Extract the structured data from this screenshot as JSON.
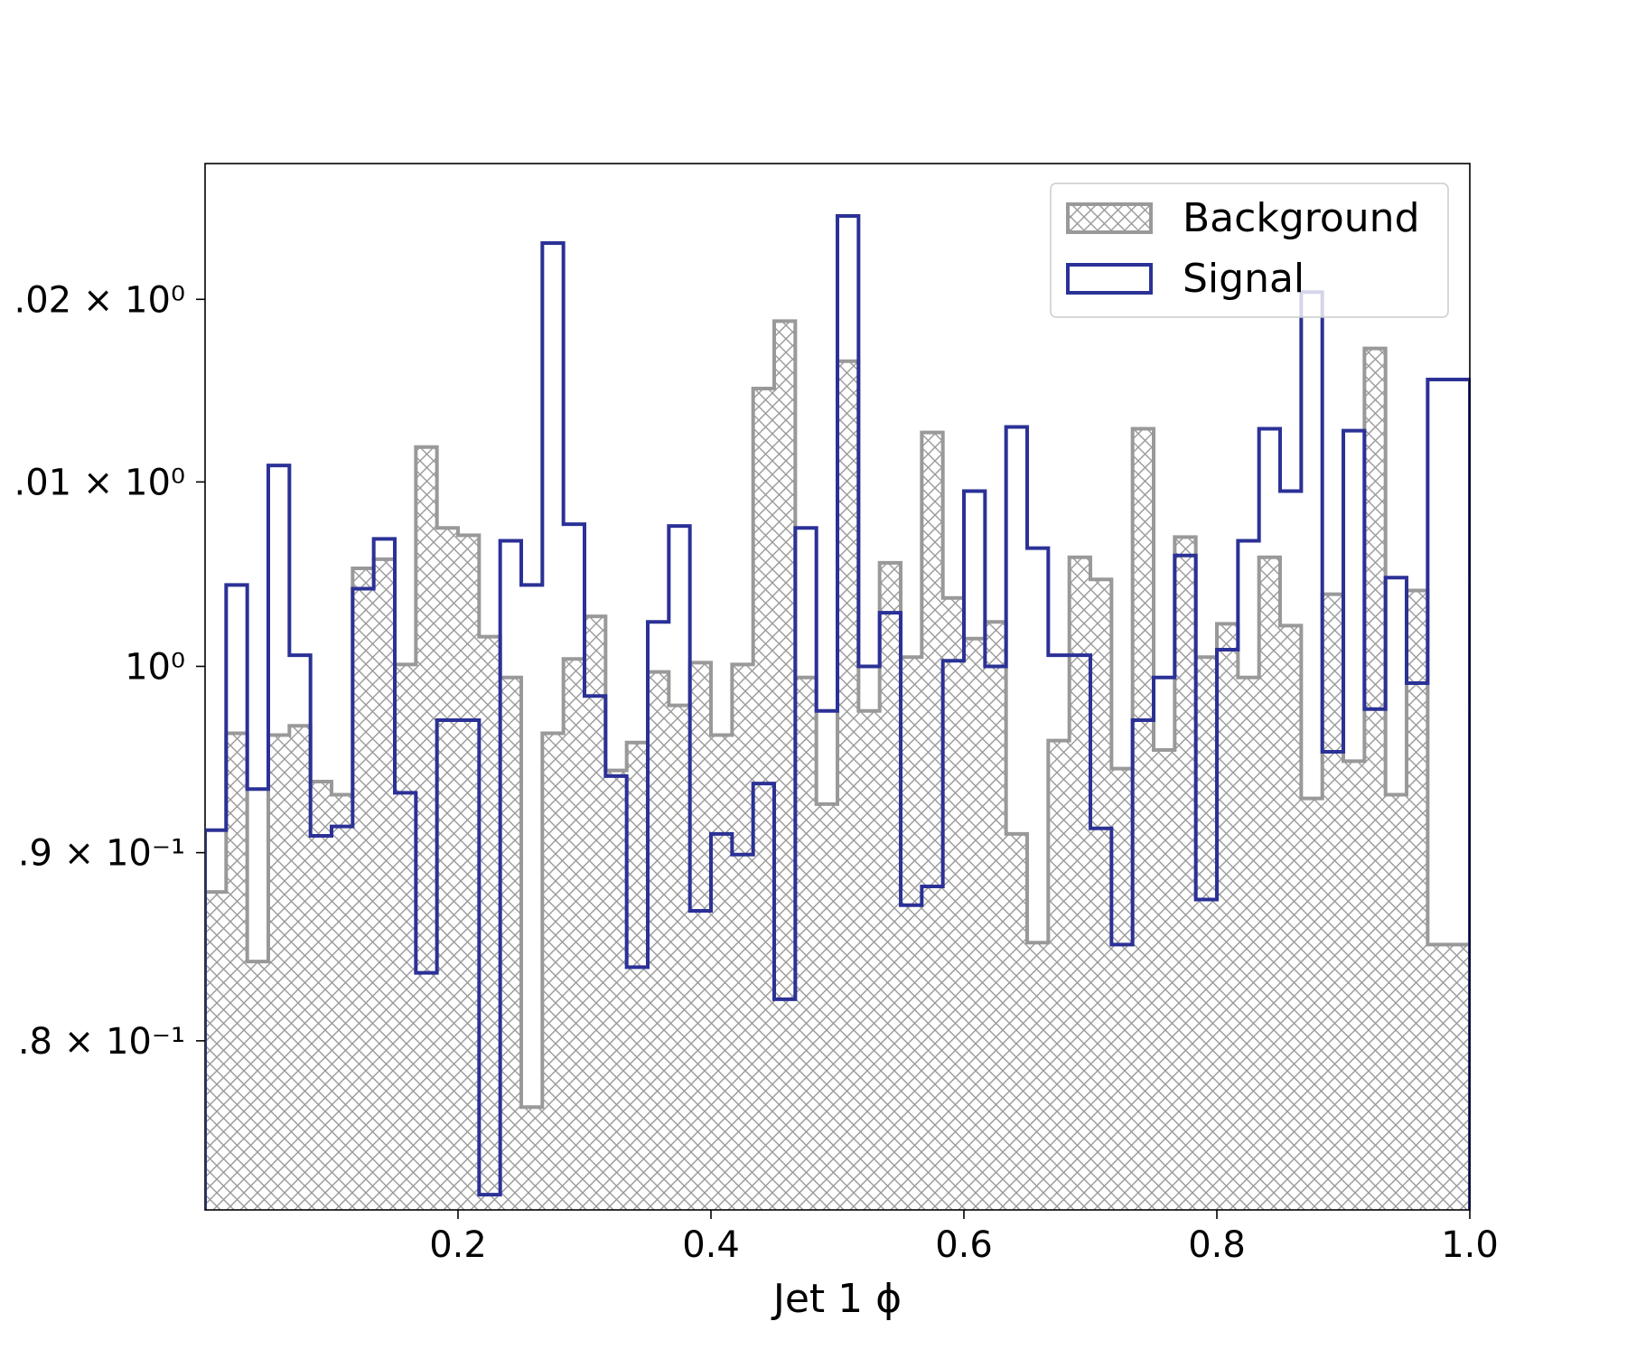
{
  "chart_data": {
    "type": "histogram",
    "xlabel": "Jet 1 ϕ",
    "ylabel": "",
    "xlim": [
      0.0,
      1.0
    ],
    "ylim": [
      0.9711,
      1.0275
    ],
    "yscale": "log",
    "x_ticks": [
      "0.2",
      "0.4",
      "0.6",
      "0.8",
      "1.0"
    ],
    "x_tick_values": [
      0.2,
      0.4,
      0.6,
      0.8,
      1.0
    ],
    "y_ticks": [
      {
        "value": 0.98,
        "label": ".8 × 10⁻¹"
      },
      {
        "value": 0.99,
        "label": ".9 × 10⁻¹"
      },
      {
        "value": 1.0,
        "label": "10⁰"
      },
      {
        "value": 1.01,
        "label": ".01 × 10⁰"
      },
      {
        "value": 1.02,
        "label": ".02 × 10⁰"
      }
    ],
    "bin_edges_start": 0.0,
    "bin_width": 0.016667,
    "grid": false,
    "legend_position": "top-right",
    "series": [
      {
        "name": "Background",
        "style": "hatched-filled",
        "color": "#999999",
        "values": [
          0.9879,
          0.9964,
          0.9842,
          0.9963,
          0.9968,
          0.9938,
          0.9931,
          1.0053,
          1.0058,
          1.0001,
          1.0119,
          1.0075,
          1.0071,
          1.0016,
          0.9994,
          0.9765,
          0.9964,
          1.0004,
          1.0027,
          0.9944,
          0.9959,
          0.9997,
          0.9979,
          1.0002,
          0.9963,
          1.0001,
          1.0151,
          1.0188,
          0.9994,
          0.9926,
          1.0166,
          0.9976,
          1.0056,
          1.0005,
          1.0127,
          1.0037,
          1.0015,
          1.0024,
          0.991,
          0.9852,
          0.996,
          1.0059,
          1.0047,
          0.9945,
          1.0129,
          0.9955,
          1.007,
          1.0005,
          1.0023,
          0.9994,
          1.0059,
          1.0022,
          0.9929,
          1.0039,
          0.9949,
          1.0173,
          0.9931,
          1.0041,
          0.9851,
          0.9851
        ]
      },
      {
        "name": "Signal",
        "style": "step-outline",
        "color": "#2b3196",
        "values": [
          0.9912,
          1.0044,
          0.9934,
          1.0109,
          1.0006,
          0.9909,
          0.9914,
          1.0042,
          1.0069,
          0.9932,
          0.9836,
          0.9971,
          0.9971,
          0.9719,
          1.0068,
          1.0044,
          1.0231,
          1.0077,
          0.9984,
          0.9941,
          0.9839,
          1.0024,
          1.0076,
          0.9869,
          0.991,
          0.9899,
          0.9937,
          0.9822,
          1.0075,
          0.9976,
          1.0246,
          1.0,
          1.0029,
          0.9872,
          0.9882,
          1.0003,
          1.0095,
          1.0,
          1.013,
          1.0064,
          1.0006,
          1.0006,
          0.9913,
          0.9851,
          0.9971,
          0.9994,
          1.006,
          0.9875,
          1.0009,
          1.0068,
          1.0129,
          1.0095,
          1.0204,
          0.9954,
          1.0128,
          0.9977,
          1.0048,
          0.9991,
          1.0156,
          1.0156
        ]
      }
    ]
  }
}
